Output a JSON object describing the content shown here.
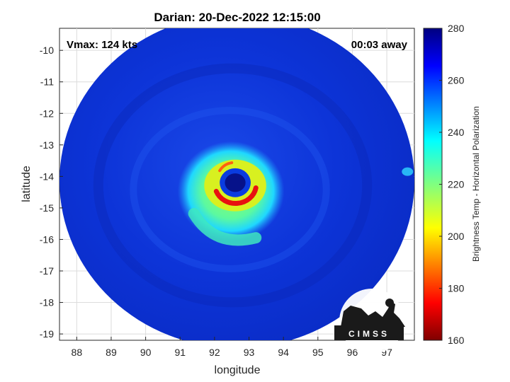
{
  "chart_data": {
    "type": "heatmap",
    "title": "Darian: 20-Dec-2022 12:15:00",
    "xlabel": "longitude",
    "ylabel": "latitude",
    "xlim": [
      87.5,
      97.8
    ],
    "ylim": [
      -19.2,
      -9.3
    ],
    "xticks": [
      88,
      89,
      90,
      91,
      92,
      93,
      94,
      95,
      96,
      97
    ],
    "yticks": [
      -10,
      -11,
      -12,
      -13,
      -14,
      -15,
      -16,
      -17,
      -18,
      -19
    ],
    "grid": true,
    "eye_center": {
      "lon": 92.6,
      "lat": -14.2
    },
    "swath_center": {
      "lon": 92.65,
      "lat": -14.15
    },
    "colorbar": {
      "label": "Brightness Temp - Horizontal Polarization",
      "range": [
        160,
        280
      ],
      "ticks": [
        160,
        180,
        200,
        220,
        240,
        260,
        280
      ],
      "colormap": "jet"
    },
    "annotations": {
      "vmax": "Vmax: 124 kts",
      "time_offset": "00:03 away"
    }
  },
  "logo": {
    "text": "CIMSS"
  }
}
